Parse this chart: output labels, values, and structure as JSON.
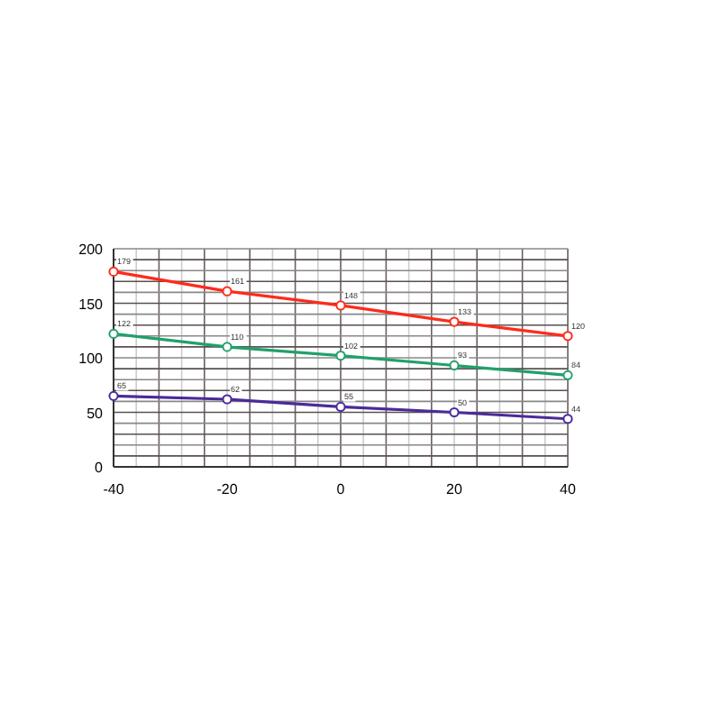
{
  "chart_data": {
    "type": "line",
    "x": [
      -40,
      -20,
      0,
      20,
      40
    ],
    "xlim": [
      -40,
      40
    ],
    "xticks": [
      -40,
      {
        "value": -36,
        "label": null
      },
      {
        "value": -32,
        "label": null
      },
      {
        "value": -28,
        "label": null
      },
      {
        "value": -24,
        "label": null
      },
      -20,
      {
        "value": -16,
        "label": null
      },
      {
        "value": -12,
        "label": null
      },
      {
        "value": -8,
        "label": null
      },
      {
        "value": -4,
        "label": null
      },
      0,
      {
        "value": 4,
        "label": null
      },
      {
        "value": 8,
        "label": null
      },
      {
        "value": 12,
        "label": null
      },
      {
        "value": 16,
        "label": null
      },
      20,
      {
        "value": 24,
        "label": null
      },
      {
        "value": 28,
        "label": null
      },
      {
        "value": 32,
        "label": null
      },
      {
        "value": 36,
        "label": null
      },
      40
    ],
    "ylim": [
      0,
      200
    ],
    "yticks": [
      0,
      {
        "value": 10,
        "label": null
      },
      {
        "value": 20,
        "label": null
      },
      {
        "value": 30,
        "label": null
      },
      {
        "value": 40,
        "label": null
      },
      50,
      {
        "value": 60,
        "label": null
      },
      {
        "value": 70,
        "label": null
      },
      {
        "value": 80,
        "label": null
      },
      {
        "value": 90,
        "label": null
      },
      100,
      {
        "value": 110,
        "label": null
      },
      {
        "value": 120,
        "label": null
      },
      {
        "value": 130,
        "label": null
      },
      {
        "value": 140,
        "label": null
      },
      150,
      {
        "value": 160,
        "label": null
      },
      {
        "value": 170,
        "label": null
      },
      {
        "value": 180,
        "label": null
      },
      {
        "value": 190,
        "label": null
      },
      200
    ],
    "grid": true,
    "marker": "circle",
    "data_labels": true,
    "series": [
      {
        "color": "#ff2a1a",
        "values": [
          179,
          161,
          148,
          133,
          120
        ]
      },
      {
        "color": "#22a06b",
        "values": [
          122,
          110,
          102,
          93,
          84
        ]
      },
      {
        "color": "#4b2a9a",
        "values": [
          65,
          62,
          55,
          50,
          44
        ]
      }
    ]
  }
}
